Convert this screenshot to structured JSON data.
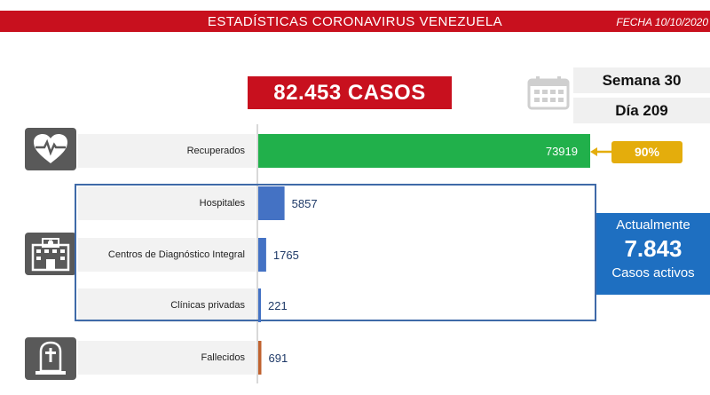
{
  "header": {
    "title": "ESTADÍSTICAS CORONAVIRUS VENEZUELA",
    "date": "FECHA 10/10/2020"
  },
  "total_cases": "82.453 CASOS",
  "week": "Semana 30",
  "day": "Día 209",
  "recovered_percent": "90%",
  "active": {
    "line1": "Actualmente",
    "value": "7.843",
    "line2": "Casos activos"
  },
  "icons": {
    "recovered": "heart-pulse-icon",
    "hospital": "hospital-building-icon",
    "deceased": "tombstone-cross-icon",
    "calendar": "calendar-icon"
  },
  "colors": {
    "header": "#c8101e",
    "recovered": "#21b04b",
    "hospital": "#4472c4",
    "deceased": "#c0622f",
    "badge": "#e4ad0c",
    "active": "#1e6fc1"
  },
  "chart_data": {
    "type": "bar",
    "orientation": "horizontal",
    "categories": [
      "Recuperados",
      "Hospitales",
      "Centros de Diagnóstico Integral",
      "Clínicas privadas",
      "Fallecidos"
    ],
    "values": [
      73919,
      5857,
      1765,
      221,
      691
    ],
    "value_labels": [
      "73919",
      "5857",
      "1765",
      "221",
      "691"
    ],
    "bar_colors": [
      "#21b04b",
      "#4472c4",
      "#4472c4",
      "#4472c4",
      "#c0622f"
    ],
    "xlim": [
      0,
      73919
    ]
  }
}
